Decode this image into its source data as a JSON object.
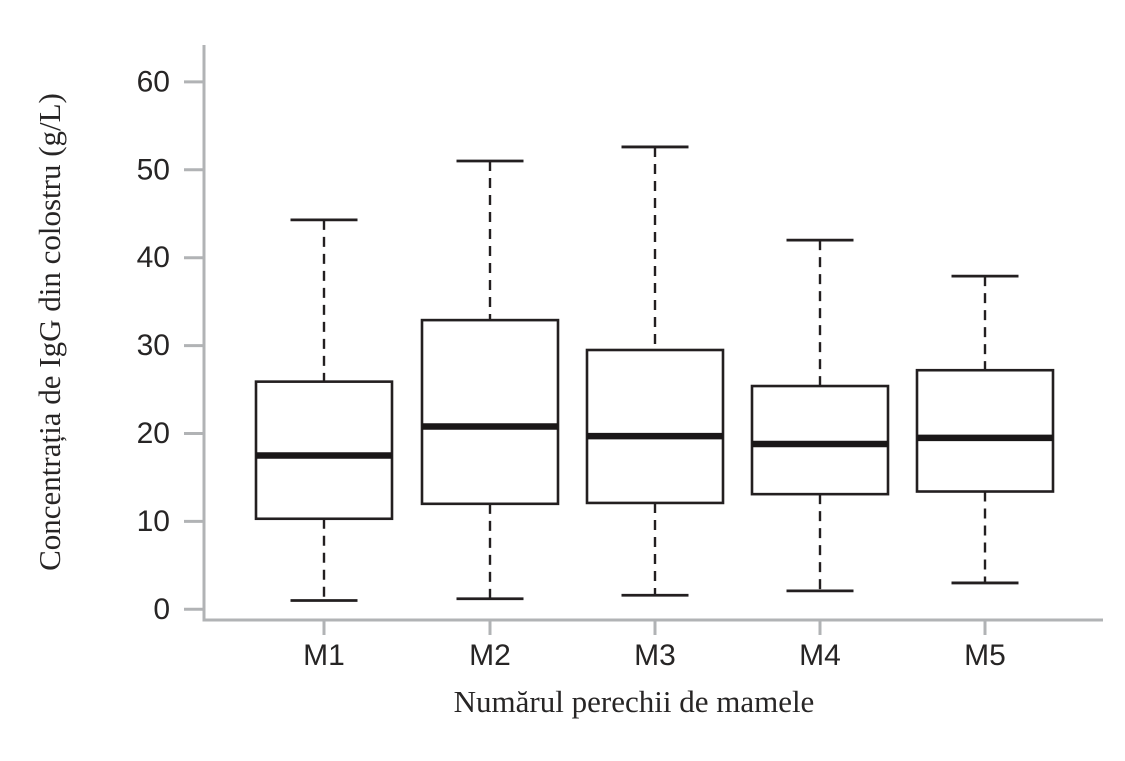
{
  "figure": {
    "background": "#ffffff"
  },
  "chart_data": {
    "type": "boxplot",
    "title": "",
    "xlabel": "Numărul perechii de mamele",
    "ylabel": "Concentrația de IgG din colostru (g/L)",
    "categories": [
      "M1",
      "M2",
      "M3",
      "M4",
      "M5"
    ],
    "yticks": [
      0,
      10,
      20,
      30,
      40,
      50,
      60
    ],
    "ylim": [
      0,
      63
    ],
    "grid": false,
    "legend": "none",
    "whisker_style": "dashed",
    "series": [
      {
        "category": "M1",
        "min": 1.0,
        "q1": 10.3,
        "median": 17.5,
        "q3": 25.9,
        "max": 44.3
      },
      {
        "category": "M2",
        "min": 1.2,
        "q1": 12.0,
        "median": 20.8,
        "q3": 32.9,
        "max": 51.0
      },
      {
        "category": "M3",
        "min": 1.6,
        "q1": 12.1,
        "median": 19.7,
        "q3": 29.5,
        "max": 52.6
      },
      {
        "category": "M4",
        "min": 2.1,
        "q1": 13.1,
        "median": 18.8,
        "q3": 25.4,
        "max": 42.0
      },
      {
        "category": "M5",
        "min": 3.0,
        "q1": 13.4,
        "median": 19.5,
        "q3": 27.2,
        "max": 37.9
      }
    ],
    "colors": {
      "box_stroke": "#231f20",
      "box_fill": "#ffffff",
      "median": "#1a1718",
      "whisker": "#231f20",
      "axis": "#b1b3b5",
      "text": "#272525"
    }
  }
}
